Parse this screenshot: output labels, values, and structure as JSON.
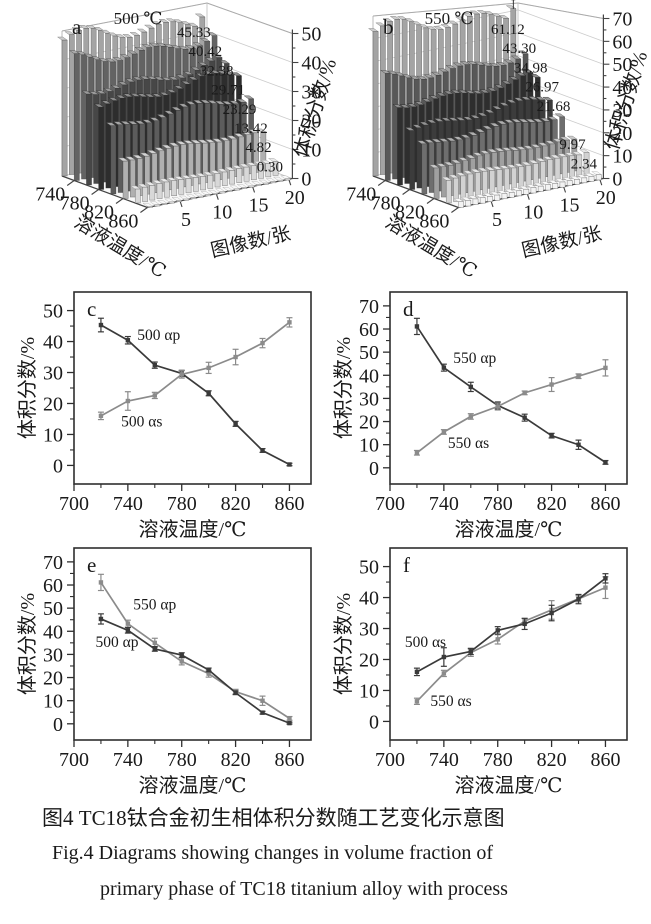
{
  "caption": {
    "zh": "图4 TC18钛合金初生相体积分数随工艺变化示意图",
    "en1": "Fig.4  Diagrams showing changes in volume fraction of",
    "en2": "primary phase of TC18 titanium alloy with process"
  },
  "shared_labels": {
    "temperature_axis": "溶液温度/℃",
    "volume_fraction_axis": "体积分数/%",
    "image_count_axis": "图像数/张"
  },
  "colors": {
    "dark_series": "#3a3a3a",
    "gray_series": "#8b8b8b",
    "axis": "#2e2e2e",
    "grid": "#cccccc"
  },
  "chart_data": [
    {
      "id": "a",
      "type": "bar3d",
      "panel_letter": "a",
      "title": "500 ℃",
      "x_axis": {
        "label": "图像数/张",
        "ticks": [
          5,
          10,
          15,
          20
        ],
        "n_images": 20
      },
      "depth_axis": {
        "label": "溶液温度/℃",
        "ticks": [
          740,
          780,
          820,
          860
        ]
      },
      "value_axis": {
        "label": "体积分数/%",
        "ticks": [
          0,
          10,
          20,
          30,
          40,
          50
        ],
        "max": 50
      },
      "rows": [
        {
          "temp": 720,
          "mean": 45.33,
          "label": "45.33",
          "color": "#a4a4a4"
        },
        {
          "temp": 740,
          "mean": 40.42,
          "label": "40.42",
          "color": "#636363"
        },
        {
          "temp": 760,
          "mean": 32.38,
          "label": "32.38",
          "color": "#474747"
        },
        {
          "temp": 780,
          "mean": 29.71,
          "label": "29.71",
          "color": "#2d2d2d"
        },
        {
          "temp": 800,
          "mean": 23.29,
          "label": "23.29",
          "color": "#5c5c5c"
        },
        {
          "temp": 820,
          "mean": 13.42,
          "label": "13.42",
          "color": "#b0b0b0"
        },
        {
          "temp": 840,
          "mean": 4.82,
          "label": "4.82",
          "color": "#d8d8d8"
        },
        {
          "temp": 860,
          "mean": 0.3,
          "label": "0.30",
          "color": "#f3f3f3"
        }
      ]
    },
    {
      "id": "b",
      "type": "bar3d",
      "panel_letter": "b",
      "title": "550 ℃",
      "x_axis": {
        "label": "图像数/张",
        "ticks": [
          5,
          10,
          15,
          20
        ],
        "n_images": 20
      },
      "depth_axis": {
        "label": "溶液温度/℃",
        "ticks": [
          740,
          780,
          820,
          860
        ]
      },
      "value_axis": {
        "label": "体积分数/%",
        "ticks": [
          0,
          10,
          20,
          30,
          40,
          50,
          60,
          70
        ],
        "max": 70
      },
      "rows": [
        {
          "temp": 720,
          "mean": 61.12,
          "label": "61.12",
          "color": "#a4a4a4"
        },
        {
          "temp": 740,
          "mean": 43.3,
          "label": "43.30",
          "color": "#585858"
        },
        {
          "temp": 760,
          "mean": 34.98,
          "label": "34.98",
          "color": "#2e2e2e"
        },
        {
          "temp": 780,
          "mean": 26.97,
          "label": "26.97",
          "color": "#3c3c3c"
        },
        {
          "temp": 800,
          "mean": 21.68,
          "label": "21.68",
          "color": "#6e6e6e"
        },
        {
          "temp": 820,
          "mean": 13.9,
          "label": "",
          "color": "#a0a0a0"
        },
        {
          "temp": 840,
          "mean": 9.97,
          "label": "9.97",
          "color": "#d2d2d2"
        },
        {
          "temp": 860,
          "mean": 2.34,
          "label": "2.34",
          "color": "#f3f3f3"
        }
      ]
    },
    {
      "id": "c",
      "type": "line",
      "panel_letter": "c",
      "xlabel": "溶液温度/℃",
      "ylabel": "体积分数/%",
      "x": [
        720,
        740,
        760,
        780,
        800,
        820,
        840,
        860
      ],
      "xticks": [
        700,
        740,
        780,
        820,
        860
      ],
      "yticks": [
        0,
        10,
        20,
        30,
        40,
        50
      ],
      "series": [
        {
          "name": "500 αp",
          "color": "#3a3a3a",
          "values": [
            45.33,
            40.42,
            32.38,
            29.71,
            23.29,
            13.42,
            4.82,
            0.3
          ],
          "errors": [
            2.2,
            1.2,
            1.0,
            1.0,
            0.8,
            0.8,
            0.6,
            0.4
          ],
          "label_at": [
            747,
            40.5
          ]
        },
        {
          "name": "500 αs",
          "color": "#8b8b8b",
          "values": [
            16.0,
            20.8,
            22.6,
            29.4,
            31.5,
            35.0,
            39.5,
            46.2
          ],
          "errors": [
            1.2,
            3.0,
            1.0,
            1.2,
            1.8,
            2.5,
            1.5,
            1.5
          ],
          "label_at": [
            735,
            12.5
          ]
        }
      ]
    },
    {
      "id": "d",
      "type": "line",
      "panel_letter": "d",
      "xlabel": "溶液温度/℃",
      "ylabel": "体积分数/%",
      "x": [
        720,
        740,
        760,
        780,
        800,
        820,
        840,
        860
      ],
      "xticks": [
        700,
        740,
        780,
        820,
        860
      ],
      "yticks": [
        0,
        10,
        20,
        30,
        40,
        50,
        60,
        70
      ],
      "series": [
        {
          "name": "550 αp",
          "color": "#3a3a3a",
          "values": [
            61.12,
            43.3,
            34.98,
            26.97,
            21.68,
            13.9,
            9.97,
            2.34
          ],
          "errors": [
            3.5,
            1.5,
            2.0,
            1.5,
            1.5,
            1.0,
            2.0,
            0.8
          ],
          "label_at": [
            747,
            45.3
          ]
        },
        {
          "name": "550 αs",
          "color": "#8b8b8b",
          "values": [
            6.5,
            15.5,
            22.2,
            26.5,
            32.4,
            36.0,
            39.6,
            43.2
          ],
          "errors": [
            1.0,
            1.0,
            1.2,
            1.5,
            0.8,
            3.0,
            1.0,
            3.5
          ],
          "label_at": [
            743,
            8.6
          ]
        }
      ]
    },
    {
      "id": "e",
      "type": "line",
      "panel_letter": "e",
      "xlabel": "溶液温度/℃",
      "ylabel": "体积分数/%",
      "x": [
        720,
        740,
        760,
        780,
        800,
        820,
        840,
        860
      ],
      "xticks": [
        700,
        740,
        780,
        820,
        860
      ],
      "yticks": [
        0,
        10,
        20,
        30,
        40,
        50,
        60,
        70
      ],
      "series": [
        {
          "name": "550 αp",
          "color": "#8b8b8b",
          "values": [
            61.12,
            43.3,
            34.98,
            26.97,
            21.68,
            13.9,
            9.97,
            2.34
          ],
          "errors": [
            3.5,
            1.5,
            2.0,
            1.5,
            1.5,
            1.0,
            2.0,
            0.8
          ],
          "label_at": [
            744,
            49.5
          ]
        },
        {
          "name": "500 αp",
          "color": "#3a3a3a",
          "values": [
            45.33,
            40.42,
            32.38,
            29.71,
            23.29,
            13.42,
            4.82,
            0.3
          ],
          "errors": [
            2.2,
            1.2,
            1.0,
            1.0,
            0.8,
            0.8,
            0.6,
            0.4
          ],
          "label_at": [
            716,
            33.2
          ]
        }
      ]
    },
    {
      "id": "f",
      "type": "line",
      "panel_letter": "f",
      "xlabel": "溶液温度/℃",
      "ylabel": "体积分数/%",
      "x": [
        720,
        740,
        760,
        780,
        800,
        820,
        840,
        860
      ],
      "xticks": [
        700,
        740,
        780,
        820,
        860
      ],
      "yticks": [
        0,
        10,
        20,
        30,
        40,
        50
      ],
      "series": [
        {
          "name": "550 αs",
          "color": "#8b8b8b",
          "values": [
            6.5,
            15.5,
            22.2,
            26.5,
            32.4,
            36.0,
            39.6,
            43.2
          ],
          "errors": [
            1.0,
            1.0,
            1.2,
            1.5,
            0.8,
            3.0,
            1.0,
            3.5
          ],
          "label_at": [
            730,
            5.0
          ]
        },
        {
          "name": "500 αs",
          "color": "#3a3a3a",
          "values": [
            16.0,
            20.8,
            22.6,
            29.4,
            31.5,
            35.0,
            39.5,
            46.2
          ],
          "errors": [
            1.2,
            3.0,
            1.0,
            1.2,
            1.8,
            2.5,
            1.5,
            1.5
          ],
          "label_at": [
            711,
            24.0
          ]
        }
      ]
    }
  ]
}
